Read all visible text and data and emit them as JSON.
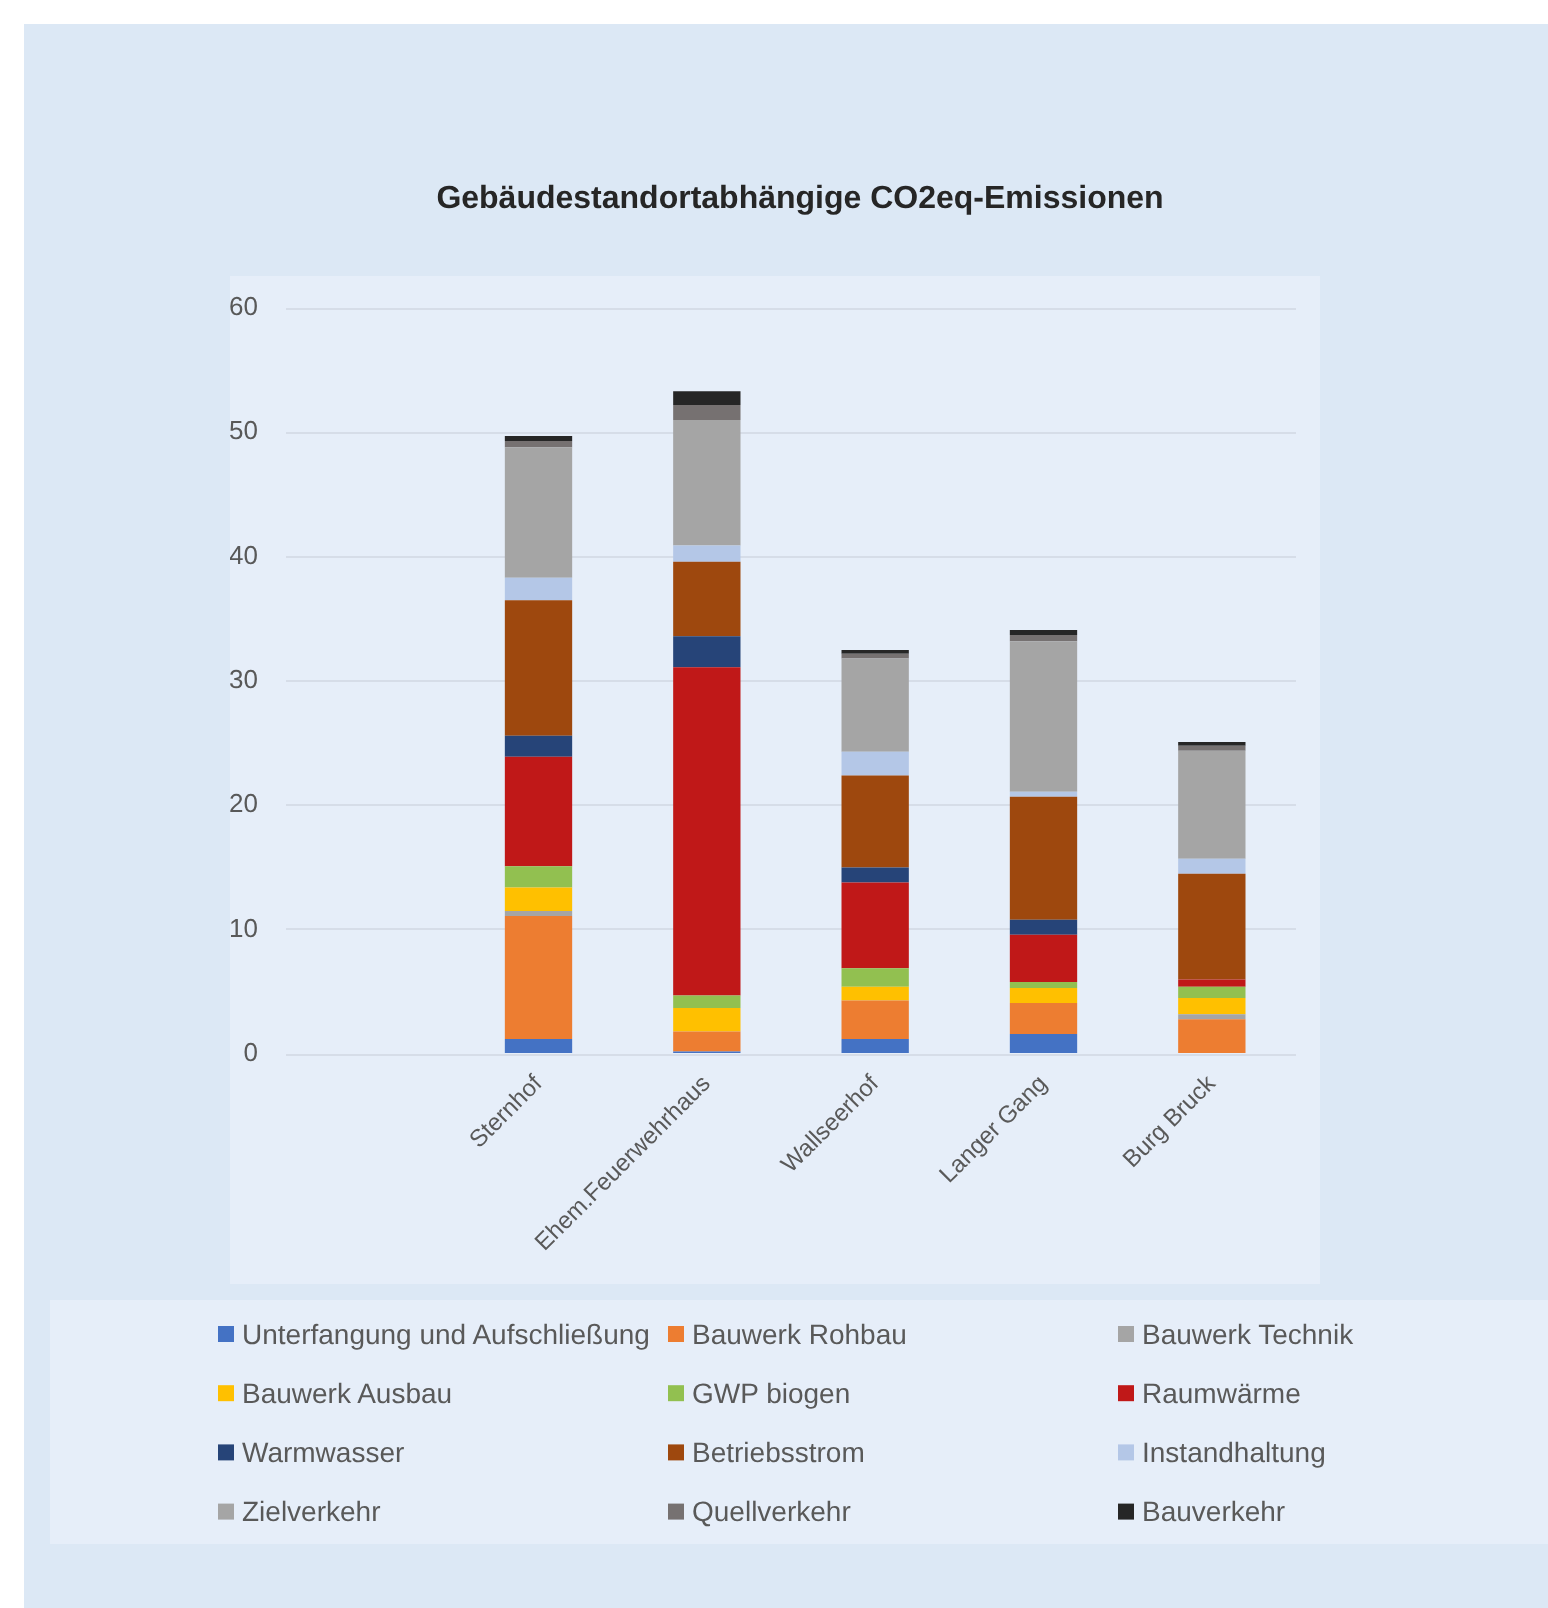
{
  "chart_data": {
    "type": "bar",
    "title": "Gebäudestandortabhängige CO2eq-Emissionen",
    "categories": [
      null,
      "Sternhof",
      "Ehem.Feuerwehrhaus",
      "Wallseerhof",
      "Langer Gang",
      "Burg Bruck"
    ],
    "stacked": true,
    "ylim": [
      0,
      60
    ],
    "yticks": [
      0,
      10,
      20,
      30,
      40,
      50,
      60
    ],
    "grid": "y",
    "legend": "bottom",
    "series": [
      {
        "name": "Unterfangung und Aufschließung",
        "color": "#4472c4",
        "values": [
          null,
          1.2,
          0.2,
          1.2,
          1.6,
          null
        ]
      },
      {
        "name": "Bauwerk Rohbau",
        "color": "#ed7d31",
        "values": [
          null,
          9.9,
          1.6,
          3.1,
          2.5,
          2.8
        ]
      },
      {
        "name": "Bauwerk Technik",
        "color": "#a5a5a5",
        "values": [
          null,
          0.4,
          null,
          null,
          null,
          0.4
        ]
      },
      {
        "name": "Bauwerk Ausbau",
        "color": "#ffc000",
        "values": [
          null,
          1.9,
          1.9,
          1.1,
          1.2,
          1.3
        ]
      },
      {
        "name": "GWP biogen",
        "color": "#92c050",
        "values": [
          null,
          1.7,
          1.0,
          1.5,
          0.5,
          0.9
        ]
      },
      {
        "name": "Raumwärme",
        "color": "#c01818",
        "values": [
          null,
          8.8,
          26.4,
          6.9,
          3.8,
          0.6
        ]
      },
      {
        "name": "Warmwasser",
        "color": "#264478",
        "values": [
          null,
          1.7,
          2.5,
          1.2,
          1.2,
          null
        ]
      },
      {
        "name": "Betriebsstrom",
        "color": "#9e480e",
        "values": [
          null,
          10.9,
          6.0,
          7.4,
          9.9,
          8.5
        ]
      },
      {
        "name": "Instandhaltung",
        "color": "#b4c7e7",
        "values": [
          null,
          1.8,
          1.3,
          1.9,
          0.4,
          1.2
        ]
      },
      {
        "name": "Zielverkehr",
        "color": "#a5a5a5",
        "values": [
          null,
          10.5,
          10.1,
          7.5,
          12.1,
          8.7
        ]
      },
      {
        "name": "Quellverkehr",
        "color": "#767171",
        "values": [
          null,
          0.5,
          1.2,
          0.4,
          0.5,
          0.4
        ]
      },
      {
        "name": "Bauverkehr",
        "color": "#262626",
        "values": [
          null,
          0.4,
          1.1,
          0.3,
          0.4,
          0.3
        ]
      }
    ]
  }
}
